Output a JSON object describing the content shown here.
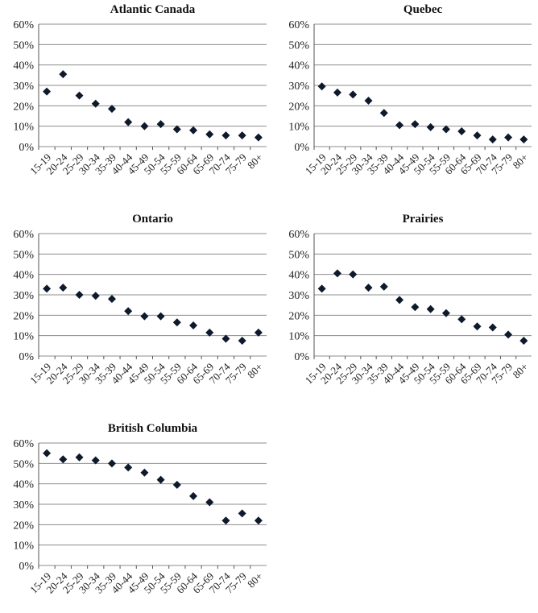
{
  "chart_data": [
    {
      "type": "scatter",
      "title": "Atlantic Canada",
      "categories": [
        "15-19",
        "20-24",
        "25-29",
        "30-34",
        "35-39",
        "40-44",
        "45-49",
        "50-54",
        "55-59",
        "60-64",
        "65-69",
        "70-74",
        "75-79",
        "80+"
      ],
      "values": [
        27,
        35.5,
        25,
        21,
        18.5,
        12,
        10,
        11,
        8.5,
        8,
        6,
        5.5,
        5.5,
        4.5
      ],
      "ylim": [
        0,
        60
      ],
      "yticks": [
        "0%",
        "10%",
        "20%",
        "30%",
        "40%",
        "50%",
        "60%"
      ],
      "grid": true,
      "marker_color": "#0e1a2b"
    },
    {
      "type": "scatter",
      "title": "Quebec",
      "categories": [
        "15-19",
        "20-24",
        "25-29",
        "30-34",
        "35-39",
        "40-44",
        "45-49",
        "50-54",
        "55-59",
        "60-64",
        "65-69",
        "70-74",
        "75-79",
        "80+"
      ],
      "values": [
        29.5,
        26.5,
        25.5,
        22.5,
        16.5,
        10.5,
        11,
        9.5,
        8.5,
        7.5,
        5.5,
        3.5,
        4.5,
        3.5
      ],
      "ylim": [
        0,
        60
      ],
      "yticks": [
        "0%",
        "10%",
        "20%",
        "30%",
        "40%",
        "50%",
        "60%"
      ],
      "grid": true,
      "marker_color": "#0e1a2b"
    },
    {
      "type": "scatter",
      "title": "Ontario",
      "categories": [
        "15-19",
        "20-24",
        "25-29",
        "30-34",
        "35-39",
        "40-44",
        "45-49",
        "50-54",
        "55-59",
        "60-64",
        "65-69",
        "70-74",
        "75-79",
        "80+"
      ],
      "values": [
        33,
        33.5,
        30,
        29.5,
        28,
        22,
        19.5,
        19.5,
        16.5,
        15,
        11.5,
        8.5,
        7.5,
        11.5
      ],
      "ylim": [
        0,
        60
      ],
      "yticks": [
        "0%",
        "10%",
        "20%",
        "30%",
        "40%",
        "50%",
        "60%"
      ],
      "grid": true,
      "marker_color": "#0e1a2b"
    },
    {
      "type": "scatter",
      "title": "Prairies",
      "categories": [
        "15-19",
        "20-24",
        "25-29",
        "30-34",
        "35-39",
        "40-44",
        "45-49",
        "50-54",
        "55-59",
        "60-64",
        "65-69",
        "70-74",
        "75-79",
        "80+"
      ],
      "values": [
        33,
        40.5,
        40,
        33.5,
        34,
        27.5,
        24,
        23,
        21,
        18,
        14.5,
        14,
        10.5,
        7.5
      ],
      "ylim": [
        0,
        60
      ],
      "yticks": [
        "0%",
        "10%",
        "20%",
        "30%",
        "40%",
        "50%",
        "60%"
      ],
      "grid": true,
      "marker_color": "#0e1a2b"
    },
    {
      "type": "scatter",
      "title": "British Columbia",
      "categories": [
        "15-19",
        "20-24",
        "25-29",
        "30-34",
        "35-39",
        "40-44",
        "45-49",
        "50-54",
        "55-59",
        "60-64",
        "65-69",
        "70-74",
        "75-79",
        "80+"
      ],
      "values": [
        55,
        52,
        53,
        51.5,
        50,
        48,
        45.5,
        42,
        39.5,
        34,
        31,
        22,
        25.5,
        22
      ],
      "ylim": [
        0,
        60
      ],
      "yticks": [
        "0%",
        "10%",
        "20%",
        "30%",
        "40%",
        "50%",
        "60%"
      ],
      "grid": true,
      "marker_color": "#0e1a2b"
    }
  ]
}
